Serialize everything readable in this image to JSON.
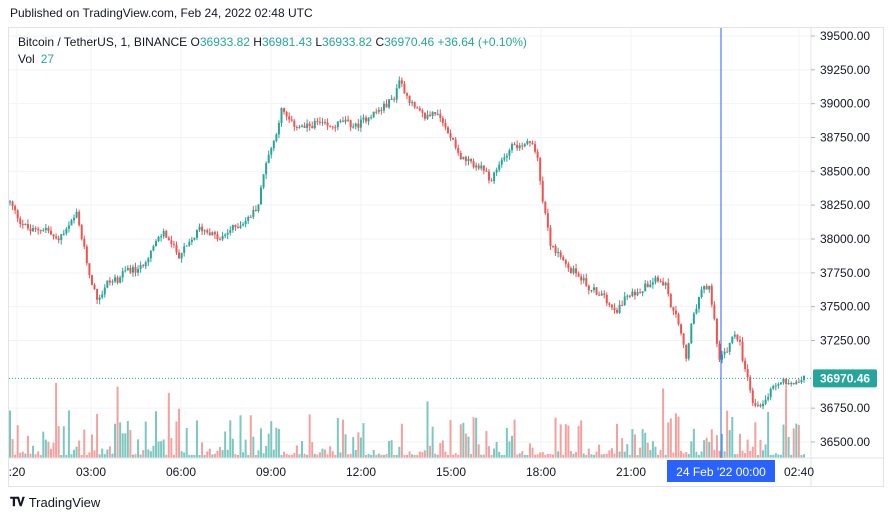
{
  "header": {
    "published": "Published on TradingView.com, Feb 24, 2022 02:48 UTC"
  },
  "legend": {
    "symbol": "Bitcoin / TetherUS, 1, BINANCE",
    "o_label": "O",
    "o": "36933.82",
    "h_label": "H",
    "h": "36981.43",
    "l_label": "L",
    "l": "36933.82",
    "c_label": "C",
    "c": "36970.46",
    "change": "+36.64 (+0.10%)",
    "vol_label": "Vol",
    "vol": "27"
  },
  "footer": {
    "brand": "TradingView"
  },
  "colors": {
    "up": "#26a69a",
    "down": "#ef5350",
    "up_vol": "#7cc8c0",
    "down_vol": "#f2a19e",
    "crosshair": "#2962ff",
    "grid": "#f0f3fa"
  },
  "chart_data": {
    "type": "candlestick",
    "title": "Bitcoin / TetherUS, 1, BINANCE",
    "y_ticks": [
      "39500.00",
      "39250.00",
      "39000.00",
      "38750.00",
      "38500.00",
      "38250.00",
      "38000.00",
      "37750.00",
      "37500.00",
      "37250.00",
      "36750.00",
      "36500.00"
    ],
    "ylim": [
      36450,
      39560
    ],
    "x_ticks": [
      ":20",
      "03:00",
      "06:00",
      "09:00",
      "12:00",
      "15:00",
      "18:00",
      "21:00",
      "02:40"
    ],
    "crosshair_label": "24 Feb '22   00:00",
    "last_price": "36970.46",
    "price_path": [
      [
        0,
        38270
      ],
      [
        4,
        38130
      ],
      [
        8,
        38060
      ],
      [
        14,
        38080
      ],
      [
        18,
        37990
      ],
      [
        22,
        38060
      ],
      [
        26,
        38180
      ],
      [
        29,
        37920
      ],
      [
        31,
        37740
      ],
      [
        34,
        37560
      ],
      [
        36,
        37600
      ],
      [
        38,
        37680
      ],
      [
        42,
        37700
      ],
      [
        46,
        37780
      ],
      [
        50,
        37760
      ],
      [
        54,
        37880
      ],
      [
        58,
        38000
      ],
      [
        60,
        38050
      ],
      [
        63,
        37960
      ],
      [
        66,
        37880
      ],
      [
        70,
        37960
      ],
      [
        74,
        38080
      ],
      [
        78,
        38050
      ],
      [
        82,
        37990
      ],
      [
        86,
        38070
      ],
      [
        90,
        38110
      ],
      [
        93,
        38150
      ],
      [
        95,
        38200
      ],
      [
        97,
        38260
      ],
      [
        100,
        38580
      ],
      [
        103,
        38720
      ],
      [
        106,
        38950
      ],
      [
        110,
        38850
      ],
      [
        115,
        38820
      ],
      [
        120,
        38860
      ],
      [
        125,
        38820
      ],
      [
        130,
        38870
      ],
      [
        135,
        38830
      ],
      [
        140,
        38910
      ],
      [
        145,
        38960
      ],
      [
        150,
        39050
      ],
      [
        152,
        39180
      ],
      [
        155,
        39060
      ],
      [
        158,
        38960
      ],
      [
        162,
        38900
      ],
      [
        166,
        38940
      ],
      [
        170,
        38820
      ],
      [
        173,
        38740
      ],
      [
        176,
        38600
      ],
      [
        180,
        38560
      ],
      [
        184,
        38520
      ],
      [
        188,
        38430
      ],
      [
        192,
        38580
      ],
      [
        196,
        38700
      ],
      [
        200,
        38670
      ],
      [
        203,
        38720
      ],
      [
        206,
        38600
      ],
      [
        208,
        38300
      ],
      [
        211,
        37970
      ],
      [
        214,
        37880
      ],
      [
        218,
        37780
      ],
      [
        222,
        37740
      ],
      [
        226,
        37640
      ],
      [
        230,
        37600
      ],
      [
        234,
        37530
      ],
      [
        237,
        37480
      ],
      [
        240,
        37560
      ],
      [
        244,
        37600
      ],
      [
        248,
        37650
      ],
      [
        252,
        37720
      ],
      [
        256,
        37660
      ],
      [
        258,
        37500
      ],
      [
        260,
        37420
      ],
      [
        262,
        37300
      ],
      [
        264,
        37120
      ],
      [
        266,
        37350
      ],
      [
        268,
        37500
      ],
      [
        270,
        37620
      ],
      [
        273,
        37640
      ],
      [
        275,
        37400
      ],
      [
        277,
        37100
      ],
      [
        280,
        37180
      ],
      [
        283,
        37300
      ],
      [
        285,
        37230
      ],
      [
        286,
        37100
      ],
      [
        288,
        36960
      ],
      [
        290,
        36800
      ],
      [
        292,
        36760
      ],
      [
        294,
        36800
      ],
      [
        296,
        36840
      ],
      [
        298,
        36920
      ],
      [
        302,
        36950
      ],
      [
        306,
        36940
      ],
      [
        309,
        36970
      ]
    ]
  }
}
